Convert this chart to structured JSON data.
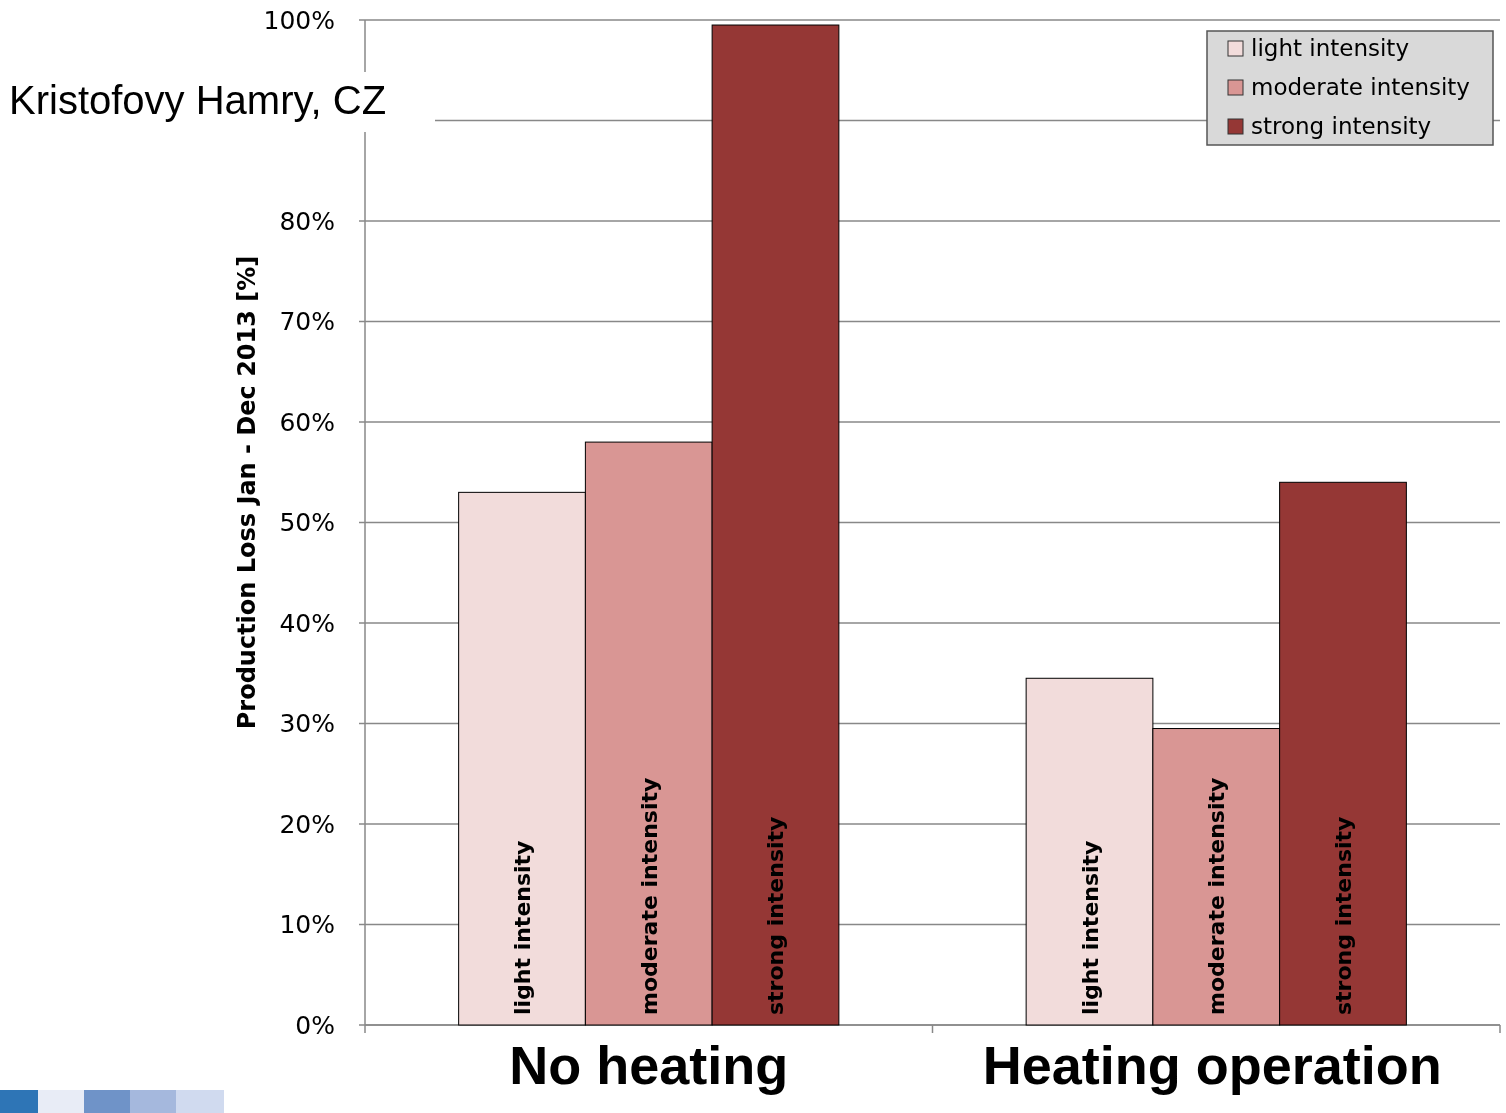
{
  "chart_data": {
    "type": "bar",
    "title": "Kristofovy Hamry, CZ",
    "ylabel": "Production Loss Jan - Dec 2013 [%]",
    "categories": [
      "No heating",
      "Heating operation"
    ],
    "series": [
      {
        "name": "light intensity",
        "color": "#f2dcdb",
        "values": [
          53,
          34.5
        ]
      },
      {
        "name": "moderate intensity",
        "color": "#d99694",
        "values": [
          58,
          29.5
        ]
      },
      {
        "name": "strong intensity",
        "color": "#953735",
        "values": [
          99.5,
          54
        ]
      }
    ],
    "ylim": [
      0,
      100
    ],
    "yticks": [
      {
        "value": 0,
        "label": "0%"
      },
      {
        "value": 10,
        "label": "10%"
      },
      {
        "value": 20,
        "label": "20%"
      },
      {
        "value": 30,
        "label": "30%"
      },
      {
        "value": 40,
        "label": "40%"
      },
      {
        "value": 50,
        "label": "50%"
      },
      {
        "value": 60,
        "label": "60%"
      },
      {
        "value": 70,
        "label": "70%"
      },
      {
        "value": 80,
        "label": "80%"
      },
      {
        "value": 90,
        "label": null
      },
      {
        "value": 100,
        "label": "100%"
      }
    ],
    "grid": "y",
    "legend": "top right"
  }
}
